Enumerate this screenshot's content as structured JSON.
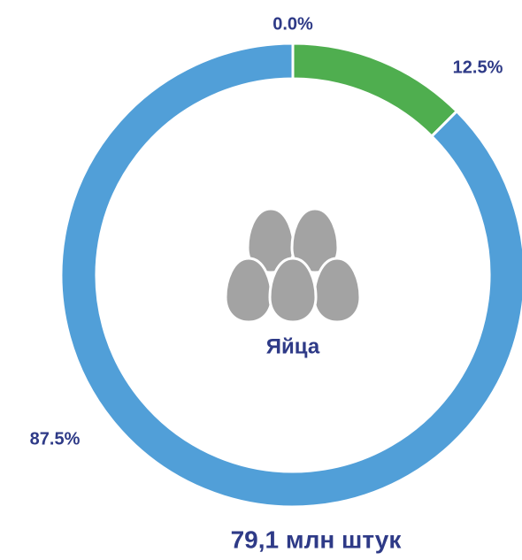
{
  "chart_data": {
    "type": "pie",
    "center_label": "Яйца",
    "footer": "79,1 млн штук",
    "values": [
      0.0,
      12.5,
      87.5
    ],
    "value_labels": [
      "0.0%",
      "12.5%",
      "87.5%"
    ],
    "colors": [
      "#e0504a",
      "#4fae4f",
      "#519fd8"
    ]
  }
}
